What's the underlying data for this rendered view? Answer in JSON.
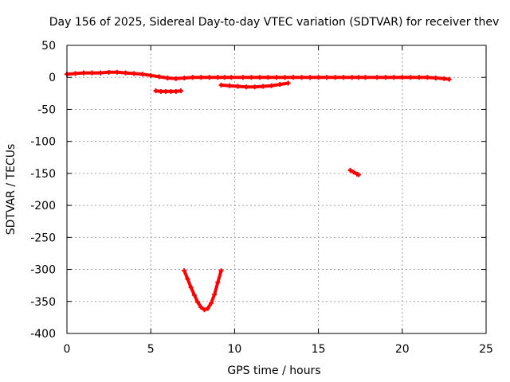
{
  "chart_data": {
    "type": "scatter",
    "title": "Day 156 of 2025, Sidereal Day-to-day VTEC variation (SDTVAR) for receiver thev",
    "xlabel": "GPS time / hours",
    "ylabel": "SDTVAR / TECUs",
    "xlim": [
      0,
      25
    ],
    "ylim": [
      -400,
      50
    ],
    "xticks": [
      "0",
      "5",
      "10",
      "15",
      "20",
      "25"
    ],
    "yticks": [
      "50",
      "0",
      "-50",
      "-100",
      "-150",
      "-200",
      "-250",
      "-300",
      "-350",
      "-400"
    ],
    "grid": true,
    "legend": "none",
    "marker": "plus",
    "color": "#ff0000",
    "series": [
      {
        "points": [
          [
            0.0,
            5
          ],
          [
            0.5,
            6
          ],
          [
            1.0,
            7
          ],
          [
            1.5,
            7
          ],
          [
            2.0,
            7
          ],
          [
            2.5,
            8
          ],
          [
            3.0,
            8
          ],
          [
            3.5,
            7
          ],
          [
            4.0,
            6
          ],
          [
            4.5,
            5
          ],
          [
            5.0,
            3
          ],
          [
            5.5,
            1
          ],
          [
            6.0,
            -1
          ],
          [
            6.5,
            -2
          ],
          [
            7.0,
            -1
          ],
          [
            7.5,
            0
          ],
          [
            8.0,
            0
          ],
          [
            8.5,
            0
          ],
          [
            9.0,
            0
          ],
          [
            9.4,
            0
          ],
          [
            9.8,
            0
          ],
          [
            10.5,
            0
          ],
          [
            11.0,
            0
          ],
          [
            11.5,
            0
          ],
          [
            12.0,
            0
          ],
          [
            12.5,
            0
          ],
          [
            13.0,
            0
          ],
          [
            13.5,
            0
          ],
          [
            14.0,
            0
          ],
          [
            14.5,
            0
          ],
          [
            15.0,
            0
          ],
          [
            15.5,
            0
          ],
          [
            16.0,
            0
          ],
          [
            16.5,
            0
          ],
          [
            17.0,
            0
          ],
          [
            17.4,
            0
          ],
          [
            17.8,
            0
          ],
          [
            18.5,
            0
          ],
          [
            19.0,
            0
          ],
          [
            19.5,
            0
          ],
          [
            20.0,
            0
          ],
          [
            20.5,
            0
          ],
          [
            21.0,
            0
          ],
          [
            21.5,
            0
          ],
          [
            22.0,
            -1
          ],
          [
            22.5,
            -2
          ],
          [
            22.8,
            -3
          ]
        ]
      },
      {
        "points": [
          [
            5.3,
            -21
          ],
          [
            5.6,
            -22
          ],
          [
            5.9,
            -22
          ],
          [
            6.2,
            -22
          ],
          [
            6.5,
            -22
          ],
          [
            6.8,
            -21
          ]
        ]
      },
      {
        "points": [
          [
            9.2,
            -12
          ],
          [
            9.7,
            -13
          ],
          [
            10.2,
            -14
          ],
          [
            10.7,
            -15
          ],
          [
            11.2,
            -15
          ],
          [
            11.7,
            -14
          ],
          [
            12.2,
            -13
          ],
          [
            12.7,
            -11
          ],
          [
            13.2,
            -9
          ]
        ]
      },
      {
        "points": [
          [
            16.9,
            -145
          ],
          [
            17.1,
            -148
          ],
          [
            17.3,
            -151
          ],
          [
            17.4,
            -152
          ]
        ]
      },
      {
        "points": [
          [
            7.0,
            -302
          ],
          [
            7.2,
            -315
          ],
          [
            7.4,
            -328
          ],
          [
            7.6,
            -340
          ],
          [
            7.8,
            -351
          ],
          [
            8.0,
            -359
          ],
          [
            8.2,
            -363
          ],
          [
            8.4,
            -361
          ],
          [
            8.6,
            -353
          ],
          [
            8.8,
            -339
          ],
          [
            9.0,
            -320
          ],
          [
            9.2,
            -302
          ]
        ]
      }
    ]
  }
}
